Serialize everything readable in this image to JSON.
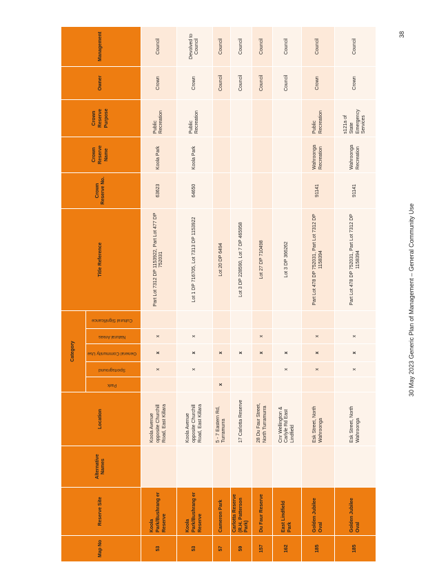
{
  "headers": {
    "map_no": "Map No",
    "reserve_site": "Reserve Site",
    "alternative_names": "Alternative Names",
    "location": "Location",
    "category": "Category",
    "title_reference": "Title Reference",
    "crown_reserve_no": "Crown Reserve No.",
    "crown_reserve_name": "Crown Reserve Name",
    "crown_reserve_purpose": "Crown Reserve Purpose",
    "owner": "Owner",
    "management": "Management",
    "category_subs": [
      "Park",
      "Sportsground",
      "General Community Use",
      "Natural Areas",
      "Cultural Significance"
    ]
  },
  "rows": [
    {
      "map_no": "53",
      "site": "Koola Park/Bushrang er Reserve",
      "alt": "",
      "location": "Koola Avenue opposite Churchill Road, East Killara",
      "park": "",
      "sport": "x",
      "gen": "x",
      "nat": "x",
      "cult": "",
      "title": "Part Lot 7312 DP 1153922, Part Lot 477 DP 752031",
      "crown_no": "63623",
      "crown_name": "Koola Park",
      "purpose": "Public Recreation",
      "owner": "Crown",
      "management": "Council"
    },
    {
      "map_no": "53",
      "site": "Koola Park/Bushrang er Reserve",
      "alt": "",
      "location": "Koola Avenue opposite Churchill Road, East Killara",
      "park": "",
      "sport": "x",
      "gen": "x",
      "nat": "x",
      "cult": "",
      "title": "Lot 1 DP 716705, Lot 7313 DP 1153922",
      "crown_no": "64650",
      "crown_name": "Koola Park",
      "purpose": "Public Recreation",
      "owner": "Crown",
      "management": "Devolved to Council"
    },
    {
      "map_no": "57",
      "site": "Cameron Park",
      "alt": "",
      "location": "5 - 7 Eastern Rd, Turramurra",
      "park": "x",
      "sport": "",
      "gen": "x",
      "nat": "",
      "cult": "",
      "title": "Lot 20 DP 6494",
      "crown_no": "",
      "crown_name": "",
      "purpose": "",
      "owner": "Council",
      "management": "Council"
    },
    {
      "map_no": "59",
      "site": "Carlotta Reserve (R.H. Patterson Park)",
      "alt": "",
      "location": "17 Carlotta Reserve",
      "park": "",
      "sport": "",
      "gen": "x",
      "nat": "",
      "cult": "",
      "title": "Lot 3 DP 228590, Lot 7 DP 465958",
      "crown_no": "",
      "crown_name": "",
      "purpose": "",
      "owner": "Council",
      "management": "Council"
    },
    {
      "map_no": "157",
      "site": "Du Faur Reserve",
      "alt": "",
      "location": "28 Du Faur Street, North Turramurra",
      "park": "",
      "sport": "",
      "gen": "x",
      "nat": "x",
      "cult": "",
      "title": "Lot 27 DP 710498",
      "crown_no": "",
      "crown_name": "",
      "purpose": "",
      "owner": "Council",
      "management": "Council"
    },
    {
      "map_no": "162",
      "site": "East Lindfield Park",
      "alt": "",
      "location": "Cnr Wellington & Carlyle Rd East Lindfield",
      "park": "",
      "sport": "x",
      "gen": "x",
      "nat": "",
      "cult": "",
      "title": "Lot 3 DP 366262",
      "crown_no": "",
      "crown_name": "",
      "purpose": "",
      "owner": "Council",
      "management": "Council"
    },
    {
      "map_no": "185",
      "site": "Golden Jubilee Oval",
      "alt": "",
      "location": "Esk Street, North Wahroonga",
      "park": "",
      "sport": "x",
      "gen": "x",
      "nat": "x",
      "cult": "",
      "title": "Part Lot 478 DP 752031, Part Lot 7312 DP 1158394",
      "crown_no": "91141",
      "crown_name": "Wahroonga Recreation",
      "purpose": "Public Recreation",
      "owner": "Crown",
      "management": "Council"
    },
    {
      "map_no": "185",
      "site": "Golden Jubilee Oval",
      "alt": "",
      "location": "Esk Street, North Wahroonga",
      "park": "",
      "sport": "x",
      "gen": "x",
      "nat": "x",
      "cult": "",
      "title": "Part Lot 478 DP 752031, Part Lot 7312 DP 1158394",
      "crown_no": "91141",
      "crown_name": "Wahroonga Recreation",
      "purpose": "s121a of State Emergency Services",
      "owner": "Crown",
      "management": "Council"
    }
  ],
  "footer": {
    "text": "30 May 2023   Generic Plan of Management – General Community Use",
    "page": "38"
  }
}
